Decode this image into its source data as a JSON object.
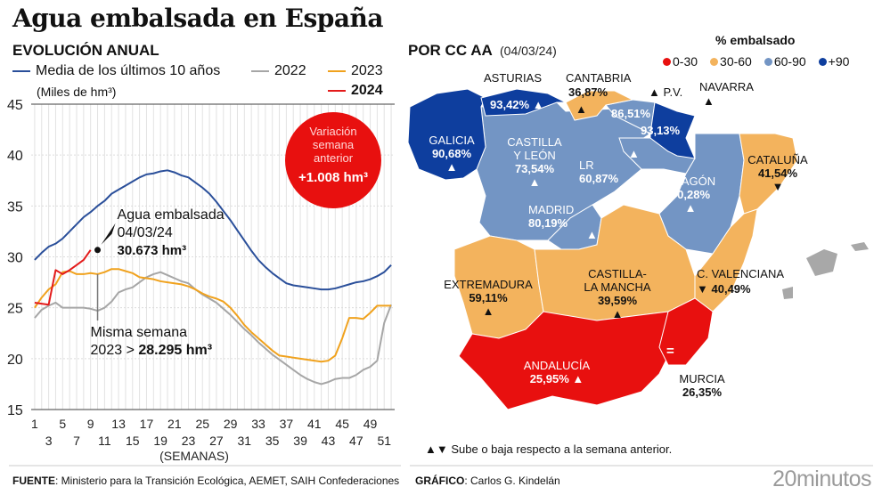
{
  "header": {
    "title": "Agua embalsada en España",
    "subtitle": "EVOLUCIÓN ANUAL"
  },
  "chart_legend": [
    {
      "label": "Media de los últimos 10 años",
      "color": "#2a4f9a"
    },
    {
      "label": "2022",
      "color": "#a6a6a6"
    },
    {
      "label": "2023",
      "color": "#f0a21e"
    },
    {
      "label": "2024",
      "color": "#e31b1b",
      "bold": true
    }
  ],
  "chart_data": {
    "type": "line",
    "title": "EVOLUCIÓN ANUAL",
    "ylabel": "(Miles de hm³)",
    "xlabel": "(SEMANAS)",
    "ylim": [
      15,
      45
    ],
    "xlim": [
      0.5,
      52.5
    ],
    "yticks": [
      15,
      20,
      25,
      30,
      35,
      40,
      45
    ],
    "xticks_top": [
      1,
      5,
      9,
      13,
      17,
      21,
      25,
      29,
      33,
      37,
      41,
      45,
      49
    ],
    "xticks_bottom": [
      3,
      7,
      11,
      15,
      19,
      23,
      27,
      31,
      35,
      39,
      43,
      47,
      51
    ],
    "grid": true,
    "x": [
      1,
      2,
      3,
      4,
      5,
      6,
      7,
      8,
      9,
      10,
      11,
      12,
      13,
      14,
      15,
      16,
      17,
      18,
      19,
      20,
      21,
      22,
      23,
      24,
      25,
      26,
      27,
      28,
      29,
      30,
      31,
      32,
      33,
      34,
      35,
      36,
      37,
      38,
      39,
      40,
      41,
      42,
      43,
      44,
      45,
      46,
      47,
      48,
      49,
      50,
      51,
      52
    ],
    "series": [
      {
        "name": "Media de los últimos 10 años",
        "color": "#2a4f9a",
        "values": [
          29.7,
          30.4,
          31.0,
          31.3,
          31.8,
          32.5,
          33.2,
          33.9,
          34.4,
          35.0,
          35.5,
          36.2,
          36.6,
          37.0,
          37.4,
          37.8,
          38.1,
          38.2,
          38.4,
          38.5,
          38.3,
          38.0,
          37.8,
          37.3,
          36.8,
          36.2,
          35.4,
          34.5,
          33.6,
          32.6,
          31.6,
          30.6,
          29.7,
          29.0,
          28.4,
          27.9,
          27.4,
          27.2,
          27.1,
          27.0,
          26.9,
          26.8,
          26.8,
          26.9,
          27.1,
          27.3,
          27.5,
          27.6,
          27.8,
          28.1,
          28.5,
          29.2
        ]
      },
      {
        "name": "2022",
        "color": "#a6a6a6",
        "values": [
          24.0,
          24.8,
          25.2,
          25.5,
          25.0,
          25.0,
          25.0,
          25.0,
          24.9,
          24.7,
          25.0,
          25.6,
          26.5,
          26.8,
          27.0,
          27.5,
          28.0,
          28.3,
          28.5,
          28.2,
          27.9,
          27.6,
          27.4,
          26.8,
          26.3,
          25.9,
          25.5,
          24.9,
          24.3,
          23.6,
          22.9,
          22.3,
          21.6,
          21.0,
          20.4,
          19.9,
          19.4,
          18.9,
          18.4,
          18.0,
          17.7,
          17.5,
          17.7,
          18.0,
          18.1,
          18.1,
          18.4,
          18.9,
          19.2,
          19.8,
          23.5,
          25.3
        ]
      },
      {
        "name": "2023",
        "color": "#f0a21e",
        "values": [
          25.0,
          26.0,
          26.8,
          27.3,
          28.5,
          28.6,
          28.3,
          28.3,
          28.4,
          28.3,
          28.5,
          28.8,
          28.8,
          28.6,
          28.4,
          28.0,
          27.9,
          27.8,
          27.6,
          27.5,
          27.4,
          27.3,
          27.1,
          26.8,
          26.4,
          26.1,
          25.9,
          25.6,
          25.0,
          24.2,
          23.3,
          22.6,
          22.0,
          21.4,
          20.8,
          20.3,
          20.2,
          20.1,
          20.0,
          19.9,
          19.8,
          19.7,
          19.8,
          20.3,
          22.0,
          24.0,
          24.0,
          23.9,
          24.5,
          25.2,
          25.2,
          25.2
        ]
      },
      {
        "name": "2024",
        "color": "#e31b1b",
        "values": [
          25.5,
          25.4,
          25.3,
          28.7,
          28.3,
          28.7,
          29.2,
          29.7,
          30.673
        ]
      }
    ],
    "annotations": [
      {
        "week": 10,
        "value": 30.673,
        "lines": [
          "Agua embalsada",
          "04/03/24",
          "30.673 hm³"
        ]
      },
      {
        "week": 10,
        "value": 28.295,
        "lines": [
          "Misma semana",
          "2023 > ",
          "28.295 hm³"
        ]
      }
    ],
    "callout": {
      "lines": [
        "Variación",
        "semana",
        "anterior"
      ],
      "value": "+1.008 hm³",
      "color": "#e8100f"
    }
  },
  "map": {
    "title": "POR CC AA",
    "date": "(04/03/24)",
    "legend_title": "% embalsado",
    "legend": [
      {
        "label": "0-30",
        "color": "#e8100f"
      },
      {
        "label": "30-60",
        "color": "#f3b35d"
      },
      {
        "label": "60-90",
        "color": "#7395c4"
      },
      {
        "label": "+90",
        "color": "#0e3e9e"
      }
    ],
    "regions": [
      {
        "name": "GALICIA",
        "value": "90,68%",
        "trend": "up"
      },
      {
        "name": "ASTURIAS",
        "value": "93,42%",
        "trend": "up"
      },
      {
        "name": "CANTABRIA",
        "value": "36,87%",
        "trend": "up"
      },
      {
        "name": "P.V.",
        "value": "86,51%",
        "trend": "up"
      },
      {
        "name": "NAVARRA",
        "value": "93,13%",
        "trend": "up"
      },
      {
        "name": "CASTILLA Y LEÓN",
        "value": "73,54%",
        "trend": "up"
      },
      {
        "name": "LR",
        "value": "60,87%",
        "trend": "up"
      },
      {
        "name": "ARAGÓN",
        "value": "70,28%",
        "trend": "up"
      },
      {
        "name": "CATALUÑA",
        "value": "41,54%",
        "trend": "down"
      },
      {
        "name": "MADRID",
        "value": "80,19%",
        "trend": "up"
      },
      {
        "name": "EXTREMADURA",
        "value": "59,11%",
        "trend": "up"
      },
      {
        "name": "CASTILLA-LA MANCHA",
        "value": "39,59%",
        "trend": "up"
      },
      {
        "name": "C. VALENCIANA",
        "value": "40,49%",
        "trend": "down"
      },
      {
        "name": "ANDALUCÍA",
        "value": "25,95%",
        "trend": "up"
      },
      {
        "name": "MURCIA",
        "value": "26,35%",
        "trend": "equal"
      }
    ],
    "labels": {
      "galicia": "GALICIA",
      "asturias": "ASTURIAS",
      "cantabria": "CANTABRIA",
      "pv": "P.V.",
      "navarra": "NAVARRA",
      "cyl1": "CASTILLA",
      "cyl2": "Y LEÓN",
      "lr": "LR",
      "aragon": "ARAGÓN",
      "cataluna": "CATALUÑA",
      "madrid": "MADRID",
      "extremadura": "EXTREMADURA",
      "clm1": "CASTILLA-",
      "clm2": "LA MANCHA",
      "valencia": "C. VALENCIANA",
      "andalucia": "ANDALUCÍA",
      "murcia": "MURCIA",
      "v_galicia": "90,68%",
      "v_asturias": "93,42%",
      "v_cantabria": "36,87%",
      "v_pv": "86,51%",
      "v_navarra": "93,13%",
      "v_cyl": "73,54%",
      "v_lr": "60,87%",
      "v_aragon": "70,28%",
      "v_cataluna": "41,54%",
      "v_madrid": "80,19%",
      "v_extremadura": "59,11%",
      "v_clm": "39,59%",
      "v_valencia": "40,49%",
      "v_andalucia": "25,95%",
      "v_murcia": "26,35%",
      "equal_sign": "="
    },
    "trend_note": "Sube o baja respecto a la semana anterior."
  },
  "footer": {
    "source_label": "FUENTE",
    "source_text": ": Ministerio para la Transición Ecológica, AEMET, SAIH Confederaciones",
    "credit_label": "GRÁFICO",
    "credit_text": ": Carlos G. Kindelán",
    "brand": "20minutos"
  }
}
